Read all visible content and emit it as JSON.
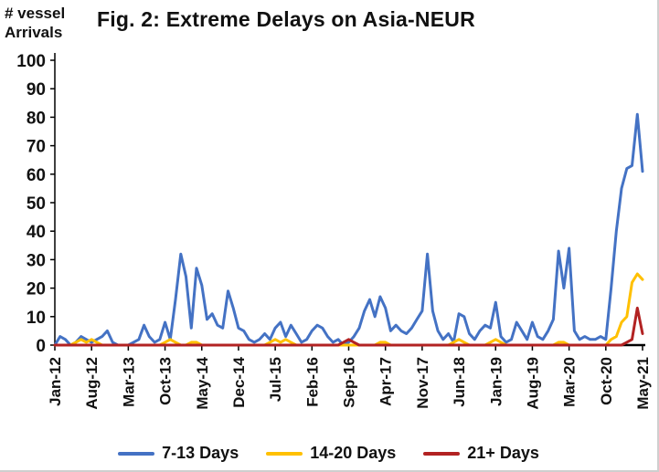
{
  "figure": {
    "y_axis_title_line1": "# vessel",
    "y_axis_title_line2": "Arrivals"
  },
  "chart_data": {
    "type": "line",
    "title": "Fig. 2: Extreme Delays on Asia-NEUR",
    "xlabel": "",
    "ylabel": "# vessel Arrivals",
    "ylim": [
      0,
      100
    ],
    "y_ticks": [
      0,
      10,
      20,
      30,
      40,
      50,
      60,
      70,
      80,
      90,
      100
    ],
    "grid": false,
    "legend_position": "bottom",
    "x": [
      "Jan-12",
      "Feb-12",
      "Mar-12",
      "Apr-12",
      "May-12",
      "Jun-12",
      "Jul-12",
      "Aug-12",
      "Sep-12",
      "Oct-12",
      "Nov-12",
      "Dec-12",
      "Jan-13",
      "Feb-13",
      "Mar-13",
      "Apr-13",
      "May-13",
      "Jun-13",
      "Jul-13",
      "Aug-13",
      "Sep-13",
      "Oct-13",
      "Nov-13",
      "Dec-13",
      "Jan-14",
      "Feb-14",
      "Mar-14",
      "Apr-14",
      "May-14",
      "Jun-14",
      "Jul-14",
      "Aug-14",
      "Sep-14",
      "Oct-14",
      "Nov-14",
      "Dec-14",
      "Jan-15",
      "Feb-15",
      "Mar-15",
      "Apr-15",
      "May-15",
      "Jun-15",
      "Jul-15",
      "Aug-15",
      "Sep-15",
      "Oct-15",
      "Nov-15",
      "Dec-15",
      "Jan-16",
      "Feb-16",
      "Mar-16",
      "Apr-16",
      "May-16",
      "Jun-16",
      "Jul-16",
      "Aug-16",
      "Sep-16",
      "Oct-16",
      "Nov-16",
      "Dec-16",
      "Jan-17",
      "Feb-17",
      "Mar-17",
      "Apr-17",
      "May-17",
      "Jun-17",
      "Jul-17",
      "Aug-17",
      "Sep-17",
      "Oct-17",
      "Nov-17",
      "Dec-17",
      "Jan-18",
      "Feb-18",
      "Mar-18",
      "Apr-18",
      "May-18",
      "Jun-18",
      "Jul-18",
      "Aug-18",
      "Sep-18",
      "Oct-18",
      "Nov-18",
      "Dec-18",
      "Jan-19",
      "Feb-19",
      "Mar-19",
      "Apr-19",
      "May-19",
      "Jun-19",
      "Jul-19",
      "Aug-19",
      "Sep-19",
      "Oct-19",
      "Nov-19",
      "Dec-19",
      "Jan-20",
      "Feb-20",
      "Mar-20",
      "Apr-20",
      "May-20",
      "Jun-20",
      "Jul-20",
      "Aug-20",
      "Sep-20",
      "Oct-20",
      "Nov-20",
      "Dec-20",
      "Jan-21",
      "Feb-21",
      "Mar-21",
      "Apr-21",
      "May-21"
    ],
    "x_tick_labels": [
      "Jan-12",
      "Aug-12",
      "Mar-13",
      "Oct-13",
      "May-14",
      "Dec-14",
      "Jul-15",
      "Feb-16",
      "Sep-16",
      "Apr-17",
      "Nov-17",
      "Jun-18",
      "Jan-19",
      "Aug-19",
      "Mar-20",
      "Oct-20",
      "May-21"
    ],
    "series": [
      {
        "name": "7-13 Days",
        "color": "#4472C4",
        "values": [
          0,
          3,
          2,
          0,
          1,
          3,
          2,
          1,
          2,
          3,
          5,
          1,
          0,
          0,
          0,
          1,
          2,
          7,
          3,
          1,
          2,
          8,
          2,
          16,
          32,
          24,
          6,
          27,
          21,
          9,
          11,
          7,
          6,
          19,
          13,
          6,
          5,
          2,
          1,
          2,
          4,
          2,
          6,
          8,
          3,
          7,
          4,
          1,
          2,
          5,
          7,
          6,
          3,
          1,
          2,
          0,
          1,
          3,
          6,
          12,
          16,
          10,
          17,
          13,
          5,
          7,
          5,
          4,
          6,
          9,
          12,
          32,
          12,
          5,
          2,
          4,
          1,
          11,
          10,
          4,
          2,
          5,
          7,
          6,
          15,
          3,
          1,
          2,
          8,
          5,
          2,
          8,
          3,
          2,
          5,
          9,
          33,
          20,
          34,
          5,
          2,
          3,
          2,
          2,
          3,
          2,
          20,
          40,
          55,
          62,
          63,
          81,
          61
        ]
      },
      {
        "name": "14-20 Days",
        "color": "#FFC000",
        "values": [
          0,
          0,
          0,
          0,
          1,
          2,
          1,
          2,
          1,
          0,
          0,
          0,
          0,
          0,
          0,
          0,
          0,
          0,
          0,
          0,
          0,
          1,
          2,
          1,
          0,
          0,
          1,
          1,
          0,
          0,
          0,
          0,
          0,
          0,
          0,
          0,
          0,
          0,
          0,
          0,
          0,
          1,
          2,
          1,
          2,
          1,
          0,
          0,
          0,
          0,
          0,
          0,
          0,
          0,
          0,
          0,
          0,
          0,
          0,
          0,
          0,
          0,
          1,
          1,
          0,
          0,
          0,
          0,
          0,
          0,
          0,
          0,
          0,
          0,
          0,
          0,
          1,
          2,
          1,
          0,
          0,
          0,
          0,
          1,
          2,
          1,
          0,
          0,
          0,
          0,
          0,
          0,
          0,
          0,
          0,
          0,
          1,
          1,
          0,
          0,
          0,
          0,
          0,
          0,
          0,
          0,
          2,
          3,
          8,
          10,
          22,
          25,
          23
        ]
      },
      {
        "name": "21+ Days",
        "color": "#B22222",
        "values": [
          0,
          0,
          0,
          0,
          0,
          0,
          0,
          0,
          0,
          0,
          0,
          0,
          0,
          0,
          0,
          0,
          0,
          0,
          0,
          0,
          0,
          0,
          0,
          0,
          0,
          0,
          0,
          0,
          0,
          0,
          0,
          0,
          0,
          0,
          0,
          0,
          0,
          0,
          0,
          0,
          0,
          0,
          0,
          0,
          0,
          0,
          0,
          0,
          0,
          0,
          0,
          0,
          0,
          0,
          0,
          1,
          2,
          1,
          0,
          0,
          0,
          0,
          0,
          0,
          0,
          0,
          0,
          0,
          0,
          0,
          0,
          0,
          0,
          0,
          0,
          0,
          0,
          0,
          0,
          0,
          0,
          0,
          0,
          0,
          0,
          0,
          0,
          0,
          0,
          0,
          0,
          0,
          0,
          0,
          0,
          0,
          0,
          0,
          0,
          0,
          0,
          0,
          0,
          0,
          0,
          0,
          0,
          0,
          0,
          1,
          2,
          13,
          4
        ]
      }
    ]
  }
}
